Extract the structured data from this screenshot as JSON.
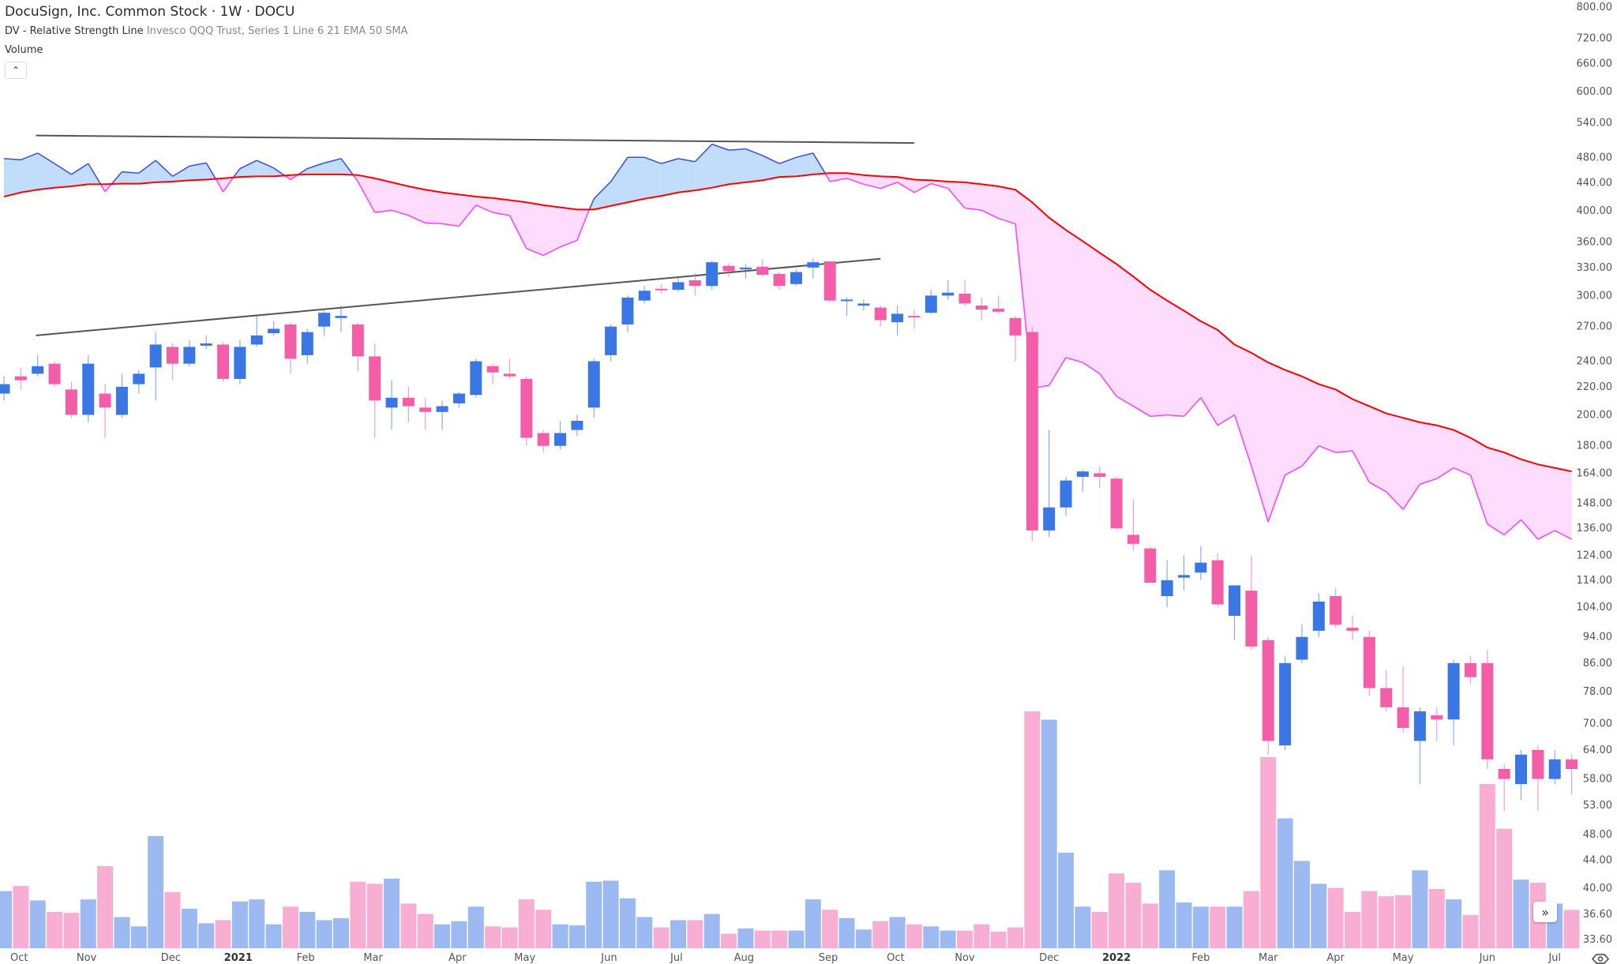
{
  "header": {
    "title": "DocuSign, Inc. Common Stock · 1W · DOCU",
    "indicator_name": "DV - Relative Strength Line",
    "indicator_params": "Invesco QQQ Trust, Series 1 Line 6 21 EMA 50 SMA",
    "volume_label": "Volume",
    "collapse_icon": "chevron-up-icon"
  },
  "controls": {
    "scroll_right_icon": "double-chevron-right-icon",
    "settings_icon": "settings-eye-icon"
  },
  "colors": {
    "up": "#3b76e5",
    "down": "#f45ea9",
    "vol_up": "#9db9f2",
    "vol_down": "#f8aed3",
    "rs_above": "#3a4de8",
    "rs_below": "#ff40ff",
    "fill_above": "#c2dcfb",
    "fill_below": "#fddcfd",
    "ma": "#ff0000",
    "trendline": "#555555"
  },
  "chart_data": {
    "type": "candlestick",
    "title": "DocuSign, Inc. Common Stock · 1W · DOCU",
    "scale": "log",
    "ylim": [
      33.6,
      800
    ],
    "y_ticks": [
      800,
      720,
      660,
      600,
      540,
      480,
      440,
      400,
      360,
      330,
      300,
      270,
      240,
      220,
      200,
      180,
      164,
      148,
      136,
      124,
      114,
      104,
      94,
      86,
      78,
      70,
      64,
      58,
      53,
      48,
      44,
      40,
      36.6,
      33.6
    ],
    "x_ticks": [
      {
        "label": "Oct",
        "i": 0.9
      },
      {
        "label": "Nov",
        "i": 4.9
      },
      {
        "label": "Dec",
        "i": 9.9
      },
      {
        "label": "2021",
        "i": 13.9,
        "bold": true
      },
      {
        "label": "Feb",
        "i": 17.9
      },
      {
        "label": "Mar",
        "i": 21.9
      },
      {
        "label": "Apr",
        "i": 26.9
      },
      {
        "label": "May",
        "i": 30.9
      },
      {
        "label": "Jun",
        "i": 35.9
      },
      {
        "label": "Jul",
        "i": 39.9
      },
      {
        "label": "Aug",
        "i": 43.9
      },
      {
        "label": "Sep",
        "i": 48.9
      },
      {
        "label": "Oct",
        "i": 52.9
      },
      {
        "label": "Nov",
        "i": 57
      },
      {
        "label": "Dec",
        "i": 62
      },
      {
        "label": "2022",
        "i": 66,
        "bold": true
      },
      {
        "label": "Feb",
        "i": 71
      },
      {
        "label": "Mar",
        "i": 75
      },
      {
        "label": "Apr",
        "i": 79
      },
      {
        "label": "May",
        "i": 83
      },
      {
        "label": "Jun",
        "i": 88
      },
      {
        "label": "Jul",
        "i": 92
      }
    ],
    "ohlc": [
      [
        215,
        228,
        210,
        222
      ],
      [
        228,
        235,
        218,
        225
      ],
      [
        230,
        245,
        228,
        236
      ],
      [
        238,
        240,
        220,
        222
      ],
      [
        218,
        224,
        198,
        200
      ],
      [
        200,
        245,
        195,
        238
      ],
      [
        215,
        222,
        185,
        205
      ],
      [
        200,
        230,
        198,
        220
      ],
      [
        222,
        233,
        215,
        230
      ],
      [
        235,
        265,
        210,
        254
      ],
      [
        252,
        255,
        225,
        238
      ],
      [
        238,
        258,
        236,
        252
      ],
      [
        253,
        262,
        250,
        255
      ],
      [
        254,
        256,
        224,
        226
      ],
      [
        226,
        258,
        222,
        252
      ],
      [
        254,
        280,
        252,
        262
      ],
      [
        264,
        275,
        262,
        268
      ],
      [
        272,
        274,
        230,
        242
      ],
      [
        245,
        268,
        238,
        265
      ],
      [
        270,
        285,
        262,
        283
      ],
      [
        278,
        290,
        265,
        280
      ],
      [
        272,
        274,
        232,
        244
      ],
      [
        244,
        255,
        185,
        210
      ],
      [
        205,
        225,
        190,
        212
      ],
      [
        212,
        220,
        195,
        206
      ],
      [
        205,
        212,
        190,
        202
      ],
      [
        202,
        210,
        190,
        206
      ],
      [
        208,
        216,
        205,
        215
      ],
      [
        214,
        242,
        212,
        240
      ],
      [
        236,
        238,
        222,
        231
      ],
      [
        230,
        242,
        226,
        228
      ],
      [
        226,
        228,
        180,
        185
      ],
      [
        188,
        190,
        176,
        180
      ],
      [
        180,
        196,
        178,
        188
      ],
      [
        190,
        200,
        186,
        196
      ],
      [
        205,
        242,
        198,
        240
      ],
      [
        245,
        272,
        240,
        270
      ],
      [
        272,
        300,
        265,
        298
      ],
      [
        295,
        310,
        292,
        305
      ],
      [
        307,
        312,
        302,
        306
      ],
      [
        306,
        320,
        304,
        314
      ],
      [
        316,
        324,
        300,
        310
      ],
      [
        310,
        338,
        306,
        336
      ],
      [
        332,
        335,
        320,
        326
      ],
      [
        328,
        334,
        318,
        330
      ],
      [
        331,
        340,
        320,
        322
      ],
      [
        323,
        325,
        306,
        310
      ],
      [
        312,
        328,
        310,
        325
      ],
      [
        330,
        340,
        318,
        336
      ],
      [
        337,
        338,
        293,
        295
      ],
      [
        296,
        298,
        280,
        296
      ],
      [
        290,
        296,
        285,
        292
      ],
      [
        288,
        290,
        270,
        276
      ],
      [
        274,
        290,
        262,
        282
      ],
      [
        280,
        286,
        268,
        279
      ],
      [
        283,
        306,
        282,
        300
      ],
      [
        300,
        316,
        296,
        303
      ],
      [
        302,
        316,
        290,
        292
      ],
      [
        290,
        298,
        276,
        286
      ],
      [
        287,
        300,
        282,
        284
      ],
      [
        278,
        280,
        240,
        262
      ],
      [
        265,
        270,
        130,
        135
      ],
      [
        135,
        190,
        132,
        146
      ],
      [
        146,
        162,
        142,
        160
      ],
      [
        162,
        166,
        154,
        165
      ],
      [
        164,
        168,
        156,
        162
      ],
      [
        161,
        162,
        135,
        136
      ],
      [
        133,
        150,
        126,
        129
      ],
      [
        127,
        128,
        113,
        113
      ],
      [
        108,
        122,
        104,
        114
      ],
      [
        115,
        124,
        110,
        116
      ],
      [
        117,
        128,
        114,
        121
      ],
      [
        122,
        125,
        104,
        105
      ],
      [
        101,
        112,
        93,
        112
      ],
      [
        110,
        124,
        90,
        91
      ],
      [
        93,
        94,
        63,
        66
      ],
      [
        65,
        88,
        64,
        86
      ],
      [
        87,
        98,
        86,
        94
      ],
      [
        96,
        109,
        94,
        106
      ],
      [
        108,
        111,
        97,
        98
      ],
      [
        97,
        101,
        93,
        96
      ],
      [
        94,
        96,
        77,
        79
      ],
      [
        79,
        84,
        73,
        74
      ],
      [
        74,
        85,
        68,
        69
      ],
      [
        66,
        74,
        57,
        73
      ],
      [
        72,
        74,
        66,
        71
      ],
      [
        71,
        87,
        65,
        86
      ],
      [
        86,
        88,
        80,
        82
      ],
      [
        86,
        90,
        60,
        62
      ],
      [
        60,
        61,
        52,
        58
      ],
      [
        57,
        64,
        54,
        63
      ],
      [
        64,
        65,
        52,
        58
      ],
      [
        58,
        64,
        57,
        62
      ],
      [
        62,
        63,
        55,
        60
      ]
    ],
    "volume_relative": [
      55,
      60,
      46,
      35,
      34,
      47,
      79,
      30,
      21,
      108,
      54,
      38,
      24,
      27,
      45,
      47,
      23,
      40,
      35,
      27,
      29,
      64,
      62,
      67,
      43,
      33,
      23,
      26,
      40,
      21,
      20,
      47,
      37,
      23,
      22,
      64,
      65,
      48,
      30,
      20,
      27,
      27,
      33,
      14,
      19,
      17,
      17,
      17,
      47,
      37,
      29,
      18,
      26,
      30,
      23,
      21,
      17,
      17,
      23,
      16,
      20,
      228,
      220,
      92,
      40,
      35,
      72,
      63,
      43,
      75,
      44,
      40,
      40,
      40,
      55,
      184,
      125,
      84,
      62,
      58,
      35,
      55,
      50,
      51,
      75,
      57,
      47,
      32,
      158,
      115,
      66,
      63,
      43,
      37
    ],
    "rs_line": [
      478,
      476,
      487,
      470,
      453,
      470,
      427,
      457,
      455,
      475,
      450,
      466,
      471,
      427,
      462,
      475,
      463,
      445,
      462,
      471,
      478,
      442,
      398,
      401,
      394,
      384,
      383,
      380,
      408,
      398,
      394,
      352,
      344,
      354,
      362,
      417,
      442,
      480,
      480,
      470,
      478,
      473,
      502,
      492,
      494,
      483,
      470,
      480,
      487,
      442,
      447,
      438,
      432,
      441,
      426,
      439,
      432,
      404,
      401,
      390,
      383,
      219,
      221,
      243,
      239,
      230,
      213,
      206,
      199,
      200,
      199,
      212,
      193,
      200,
      168,
      139,
      163,
      168,
      180,
      176,
      177,
      159,
      154,
      145,
      158,
      161,
      167,
      163,
      138,
      133,
      140,
      131,
      135,
      131
    ],
    "rs_sma50": [
      420,
      426,
      430,
      433,
      435,
      438,
      438,
      439,
      439,
      441,
      442,
      444,
      445,
      447,
      449,
      450,
      450,
      452,
      453,
      453,
      453,
      452,
      447,
      441,
      435,
      430,
      426,
      423,
      420,
      418,
      415,
      412,
      408,
      405,
      402,
      402,
      407,
      412,
      417,
      421,
      426,
      429,
      433,
      438,
      441,
      444,
      449,
      450,
      453,
      455,
      455,
      452,
      450,
      449,
      445,
      444,
      442,
      441,
      438,
      435,
      430,
      412,
      391,
      375,
      361,
      347,
      334,
      320,
      306,
      295,
      285,
      275,
      267,
      254,
      247,
      239,
      233,
      228,
      222,
      218,
      211,
      206,
      201,
      198,
      195,
      193,
      190,
      185,
      179,
      176,
      172,
      169,
      167,
      165
    ],
    "trendlines": [
      {
        "from": {
          "i": 1.9,
          "price": 517
        },
        "to": {
          "i": 54,
          "price": 504
        }
      },
      {
        "from": {
          "i": 1.9,
          "price": 262
        },
        "to": {
          "i": 52,
          "price": 340
        }
      }
    ]
  }
}
